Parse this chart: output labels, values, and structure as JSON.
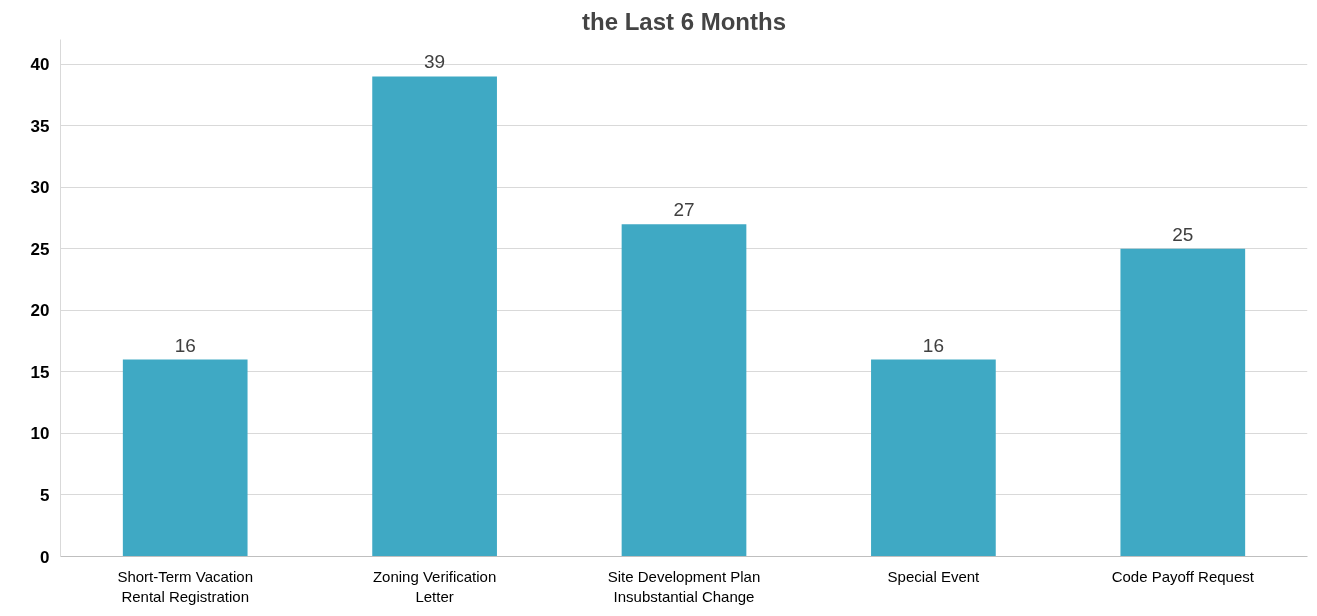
{
  "chart_data": {
    "type": "bar",
    "title": "the Last 6 Months",
    "categories": [
      "Short-Term Vacation\nRental Registration",
      "Zoning Verification\nLetter",
      "Site Development Plan\nInsubstantial Change",
      "Special Event",
      "Code Payoff Request"
    ],
    "values": [
      16,
      39,
      27,
      16,
      25
    ],
    "color": "#3fa9c4",
    "ylim": [
      0,
      42
    ],
    "yticks": [
      0,
      5,
      10,
      15,
      20,
      25,
      30,
      35,
      40
    ],
    "grid": "y",
    "data_labels": true
  }
}
